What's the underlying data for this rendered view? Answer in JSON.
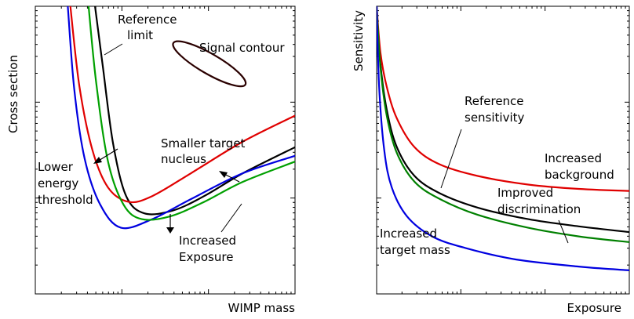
{
  "chart_data": [
    {
      "type": "line",
      "panel": "left",
      "xlabel": "WIMP mass",
      "ylabel": "Cross section",
      "x_scale": "log",
      "y_scale": "log",
      "xlim": [
        0,
        10
      ],
      "ylim": [
        0,
        10
      ],
      "grid": false,
      "series": [
        {
          "name": "Reference limit",
          "color": "#000000",
          "x": [
            2.3,
            2.6,
            3.0,
            3.5,
            4.2,
            5.3,
            6.5,
            8.0,
            10.0
          ],
          "y": [
            10.0,
            7.9,
            5.2,
            3.4,
            2.8,
            2.9,
            3.4,
            4.2,
            5.1
          ]
        },
        {
          "name": "Smaller target nucleus",
          "color": "#e00000",
          "x": [
            1.35,
            1.7,
            2.2,
            2.8,
            3.6,
            4.5,
            6.0,
            8.0,
            10.0
          ],
          "y": [
            10.0,
            7.2,
            5.0,
            3.7,
            3.2,
            3.4,
            4.2,
            5.3,
            6.2
          ]
        },
        {
          "name": "Lower energy threshold",
          "color": "#0000e0",
          "x": [
            1.25,
            1.5,
            1.9,
            2.5,
            3.3,
            4.5,
            6.0,
            8.0,
            10.0
          ],
          "y": [
            10.0,
            7.1,
            4.7,
            3.1,
            2.3,
            2.6,
            3.3,
            4.2,
            4.8
          ]
        },
        {
          "name": "Increased Exposure",
          "color": "#00a000",
          "x": [
            2.05,
            2.35,
            2.8,
            3.4,
            4.1,
            5.2,
            6.5,
            8.0,
            10.0
          ],
          "y": [
            10.0,
            7.3,
            4.6,
            3.1,
            2.6,
            2.7,
            3.2,
            3.9,
            4.6
          ]
        }
      ],
      "contour": {
        "name": "Signal contour",
        "color": "#2a0000",
        "center": [
          6.7,
          8.0
        ],
        "rx": 1.6,
        "ry": 0.35,
        "angle_deg": -30
      },
      "annotations": [
        "Reference limit",
        "Signal contour",
        "Smaller target nucleus",
        "Lower energy threshold",
        "Increased Exposure"
      ]
    },
    {
      "type": "line",
      "panel": "right",
      "xlabel": "Exposure",
      "ylabel": "Sensitivity",
      "x_scale": "log",
      "y_scale": "log",
      "xlim": [
        0,
        10
      ],
      "ylim": [
        0,
        10
      ],
      "grid": false,
      "series": [
        {
          "name": "Reference sensitivity",
          "color": "#000000",
          "x": [
            0.0,
            0.15,
            0.4,
            0.8,
            1.5,
            2.5,
            4.0,
            6.0,
            8.0,
            10.0
          ],
          "y": [
            10.0,
            8.0,
            6.4,
            5.1,
            4.1,
            3.5,
            3.0,
            2.6,
            2.35,
            2.15
          ]
        },
        {
          "name": "Increased background",
          "color": "#e00000",
          "x": [
            0.0,
            0.15,
            0.4,
            0.8,
            1.5,
            2.5,
            4.0,
            6.0,
            8.0,
            10.0
          ],
          "y": [
            10.0,
            8.4,
            7.2,
            6.1,
            5.1,
            4.5,
            4.1,
            3.8,
            3.65,
            3.58
          ]
        },
        {
          "name": "Improved discrimination",
          "color": "#008000",
          "x": [
            0.0,
            0.15,
            0.4,
            0.8,
            1.5,
            2.5,
            4.0,
            6.0,
            8.0,
            10.0
          ],
          "y": [
            10.0,
            7.9,
            6.2,
            4.9,
            3.9,
            3.3,
            2.75,
            2.3,
            2.0,
            1.8
          ]
        },
        {
          "name": "Increased target mass",
          "color": "#0000e0",
          "x": [
            0.0,
            0.1,
            0.3,
            0.6,
            1.2,
            2.2,
            3.5,
            5.5,
            8.0,
            10.0
          ],
          "y": [
            10.0,
            7.2,
            5.0,
            3.7,
            2.7,
            2.0,
            1.6,
            1.2,
            0.95,
            0.82
          ]
        }
      ],
      "annotations": [
        "Reference sensitivity",
        "Increased background",
        "Improved discrimination",
        "Increased target mass"
      ]
    }
  ],
  "labels": {
    "left_ylabel": "Cross section",
    "left_xlabel": "WIMP mass",
    "right_ylabel": "Sensitivity",
    "right_xlabel": "Exposure",
    "ref_limit_1": "Reference",
    "ref_limit_2": "limit",
    "signal_contour": "Signal contour",
    "smaller_1": "Smaller target",
    "smaller_2": "nucleus",
    "lower_1": "Lower",
    "lower_2": "energy",
    "lower_3": "threshold",
    "increased_exp_1": "Increased",
    "increased_exp_2": "Exposure",
    "ref_sens_1": "Reference",
    "ref_sens_2": "sensitivity",
    "inc_bg_1": "Increased",
    "inc_bg_2": "background",
    "imp_disc_1": "Improved",
    "imp_disc_2": "discrimination",
    "inc_mass_1": "Increased",
    "inc_mass_2": "target mass"
  }
}
